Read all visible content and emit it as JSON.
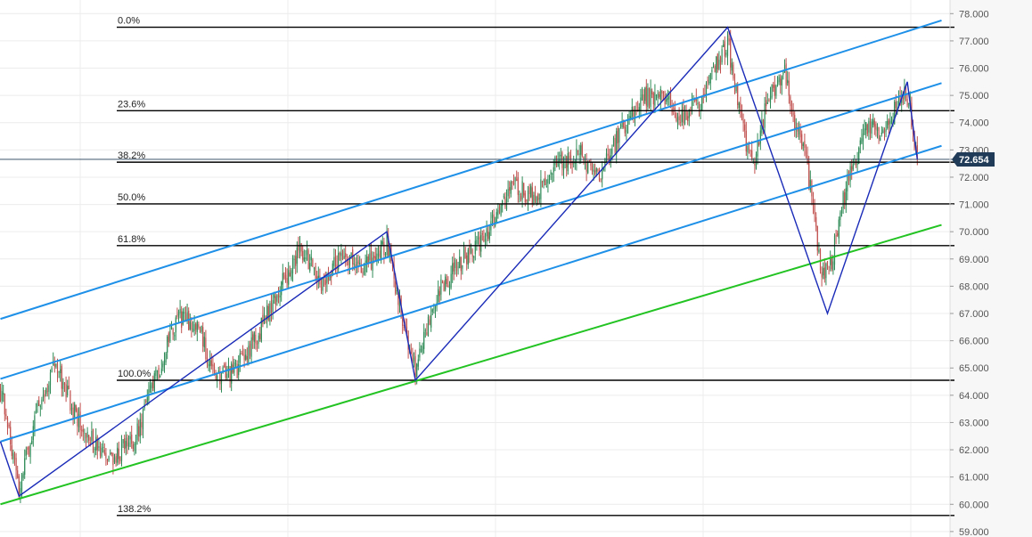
{
  "colors": {
    "background": "#ffffff",
    "grid": "#ececec",
    "axis_panel": "#f7f7f7",
    "candle_up": "#2e8b57",
    "candle_down": "#c0504d",
    "fib_line": "#000000",
    "zigzag": "#1a2bb8",
    "channel": "#1e90e8",
    "support": "#22c322",
    "price_badge": "#1f3b57",
    "price_line": "#1f3b57"
  },
  "chart_data": {
    "type": "candlestick",
    "title": "",
    "xlabel": "",
    "ylabel": "",
    "ylim": [
      58.8,
      78.5
    ],
    "grid": true,
    "y_ticks": [
      "59.000",
      "60.000",
      "61.000",
      "62.000",
      "63.000",
      "64.000",
      "65.000",
      "66.000",
      "67.000",
      "68.000",
      "69.000",
      "70.000",
      "71.000",
      "72.000",
      "73.000",
      "74.000",
      "75.000",
      "76.000",
      "77.000",
      "78.000"
    ],
    "y_tick_values": [
      59,
      60,
      61,
      62,
      63,
      64,
      65,
      66,
      67,
      68,
      69,
      70,
      71,
      72,
      73,
      74,
      75,
      76,
      77,
      78
    ],
    "bar_count": 680,
    "current_price": {
      "value": 72.654,
      "label": "72.654"
    },
    "fibonacci": [
      {
        "label": "0.0%",
        "value": 77.5
      },
      {
        "label": "23.6%",
        "value": 74.44
      },
      {
        "label": "38.2%",
        "value": 72.55
      },
      {
        "label": "50.0%",
        "value": 71.02
      },
      {
        "label": "61.8%",
        "value": 69.49
      },
      {
        "label": "100.0%",
        "value": 64.55
      },
      {
        "label": "138.2%",
        "value": 59.59
      }
    ],
    "zigzag": [
      {
        "bar": 0,
        "price": 62.3
      },
      {
        "bar": 13,
        "price": 60.3
      },
      {
        "bar": 271,
        "price": 70.0
      },
      {
        "bar": 291,
        "price": 64.55
      },
      {
        "bar": 510,
        "price": 77.5
      },
      {
        "bar": 580,
        "price": 67.0
      },
      {
        "bar": 636,
        "price": 75.5
      },
      {
        "bar": 643,
        "price": 72.65
      }
    ],
    "channel_lines": [
      {
        "name": "",
        "x0_bar": 0,
        "y0": 66.8,
        "x1_bar": 660,
        "y1": 77.75
      },
      {
        "name": "",
        "x0_bar": 0,
        "y0": 64.6,
        "x1_bar": 660,
        "y1": 75.45
      },
      {
        "name": "",
        "x0_bar": 0,
        "y0": 62.3,
        "x1_bar": 660,
        "y1": 73.15
      }
    ],
    "support_line": {
      "x0_bar": 0,
      "y0": 60.0,
      "x1_bar": 660,
      "y1": 70.25
    },
    "candles": {
      "anchors": [
        [
          0,
          64.2
        ],
        [
          6,
          62.8
        ],
        [
          13,
          60.5
        ],
        [
          25,
          63.4
        ],
        [
          38,
          65.1
        ],
        [
          55,
          63.0
        ],
        [
          75,
          61.5
        ],
        [
          95,
          62.5
        ],
        [
          110,
          64.8
        ],
        [
          125,
          66.9
        ],
        [
          140,
          66.4
        ],
        [
          150,
          64.6
        ],
        [
          165,
          64.9
        ],
        [
          180,
          66.2
        ],
        [
          195,
          67.8
        ],
        [
          210,
          69.4
        ],
        [
          225,
          68.1
        ],
        [
          240,
          69.3
        ],
        [
          255,
          68.6
        ],
        [
          271,
          69.6
        ],
        [
          282,
          66.8
        ],
        [
          291,
          64.9
        ],
        [
          305,
          67.6
        ],
        [
          318,
          68.7
        ],
        [
          330,
          69.2
        ],
        [
          345,
          70.3
        ],
        [
          360,
          71.7
        ],
        [
          375,
          71.2
        ],
        [
          390,
          72.5
        ],
        [
          405,
          72.9
        ],
        [
          420,
          72.1
        ],
        [
          435,
          73.7
        ],
        [
          450,
          74.9
        ],
        [
          465,
          75.0
        ],
        [
          475,
          74.1
        ],
        [
          490,
          74.7
        ],
        [
          505,
          76.5
        ],
        [
          510,
          77.0
        ],
        [
          518,
          74.4
        ],
        [
          528,
          72.2
        ],
        [
          538,
          74.9
        ],
        [
          550,
          76.0
        ],
        [
          558,
          73.8
        ],
        [
          566,
          72.4
        ],
        [
          576,
          68.4
        ],
        [
          583,
          69.0
        ],
        [
          595,
          72.1
        ],
        [
          608,
          73.9
        ],
        [
          620,
          73.6
        ],
        [
          632,
          75.0
        ],
        [
          637,
          74.9
        ],
        [
          643,
          72.65
        ]
      ],
      "noise": 0.38
    }
  }
}
